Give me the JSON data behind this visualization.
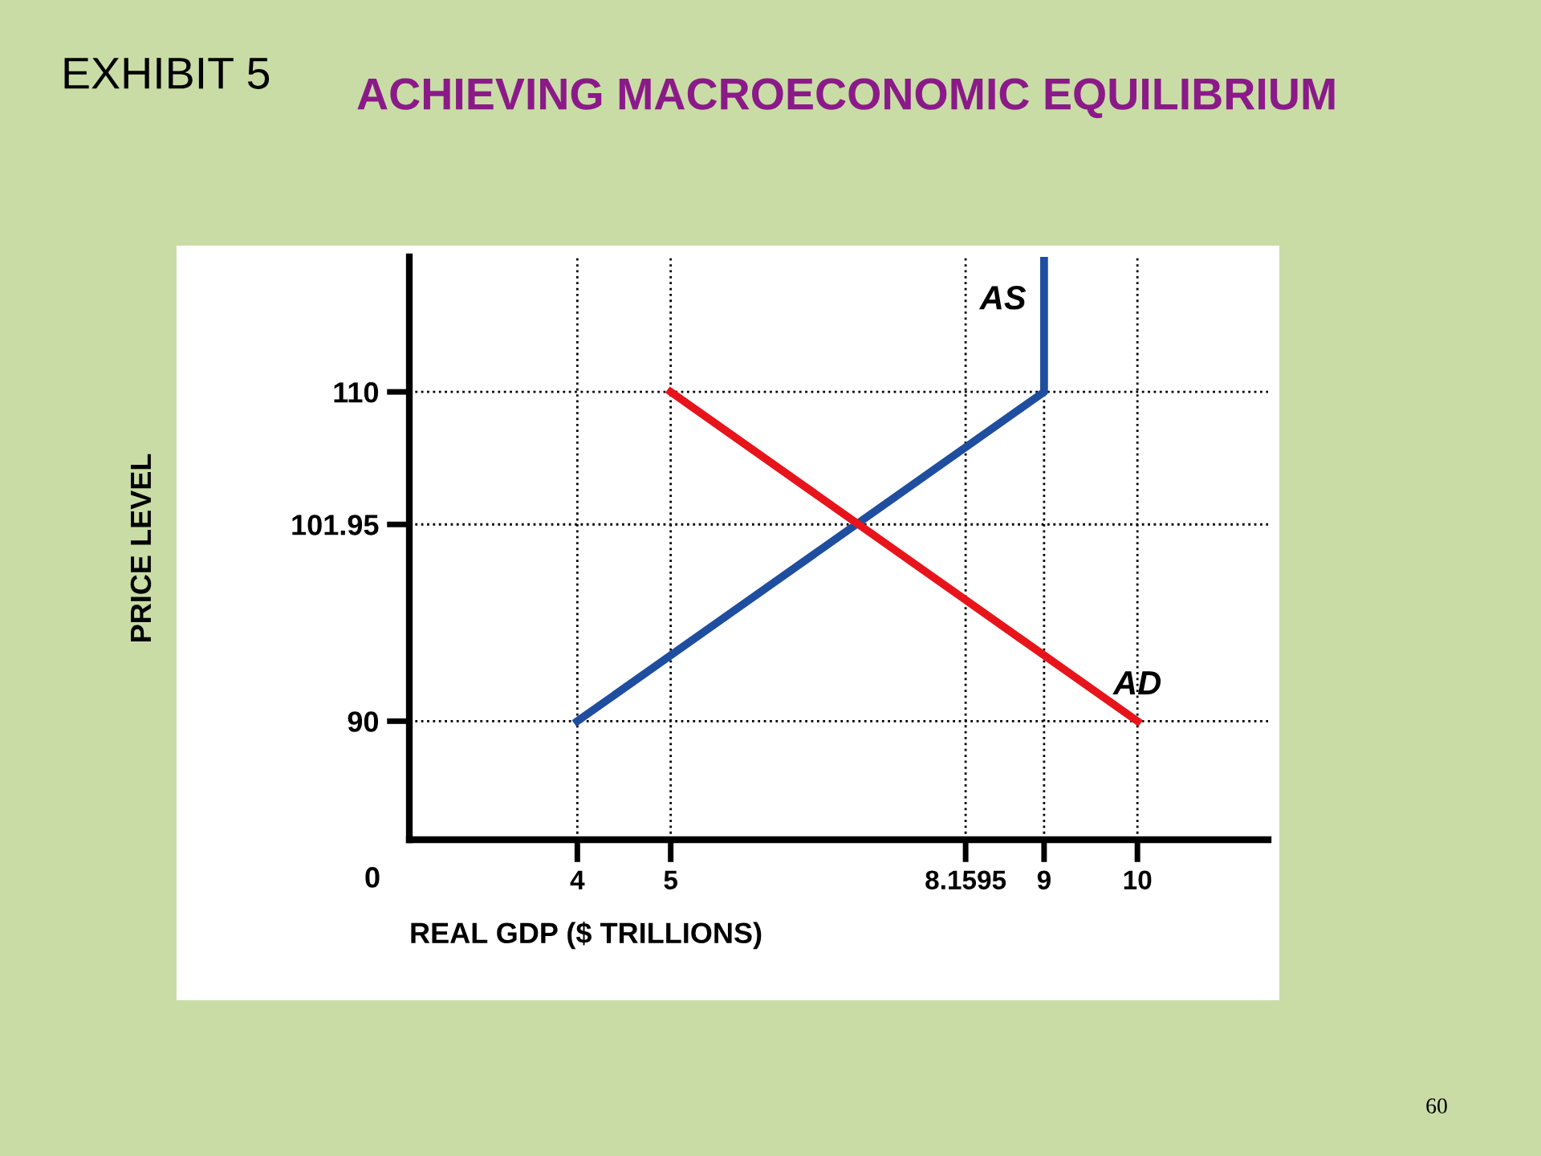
{
  "chart_data": {
    "type": "line",
    "title": "EXHIBIT 5",
    "subtitle": "ACHIEVING MACROECONOMIC EQUILIBRIUM",
    "xlabel": "REAL GDP ($ TRILLIONS)",
    "ylabel": "PRICE LEVEL",
    "series": [
      {
        "name": "AS",
        "color": "#1f4ea0",
        "x": [
          4,
          9,
          9
        ],
        "values": [
          90,
          110,
          118
        ]
      },
      {
        "name": "AD",
        "color": "#e8141c",
        "x": [
          5,
          10
        ],
        "values": [
          110,
          90
        ]
      }
    ],
    "xlim": [
      2.2,
      11.4
    ],
    "ylim": [
      82.8,
      118.2
    ],
    "xticks": [
      4,
      5,
      8.1595,
      9,
      10
    ],
    "yticks": [
      90,
      101.95,
      110
    ],
    "ref_lines": [
      {
        "axis": "y",
        "value": 110,
        "line_style": "dotted",
        "color": "#000000"
      },
      {
        "axis": "y",
        "value": 101.95,
        "line_style": "dotted",
        "color": "#000000"
      },
      {
        "axis": "y",
        "value": 90,
        "line_style": "dotted",
        "color": "#000000"
      },
      {
        "axis": "x",
        "value": 4,
        "line_style": "dotted",
        "color": "#000000"
      },
      {
        "axis": "x",
        "value": 5,
        "line_style": "dotted",
        "color": "#000000"
      },
      {
        "axis": "x",
        "value": 8.1595,
        "line_style": "dotted",
        "color": "#000000"
      },
      {
        "axis": "x",
        "value": 9,
        "line_style": "dotted",
        "color": "#000000"
      },
      {
        "axis": "x",
        "value": 10,
        "line_style": "dotted",
        "color": "#000000"
      }
    ],
    "annotations": [
      "0",
      "60"
    ],
    "grid": false,
    "legend": false,
    "marker": "none",
    "line_style": "solid"
  }
}
